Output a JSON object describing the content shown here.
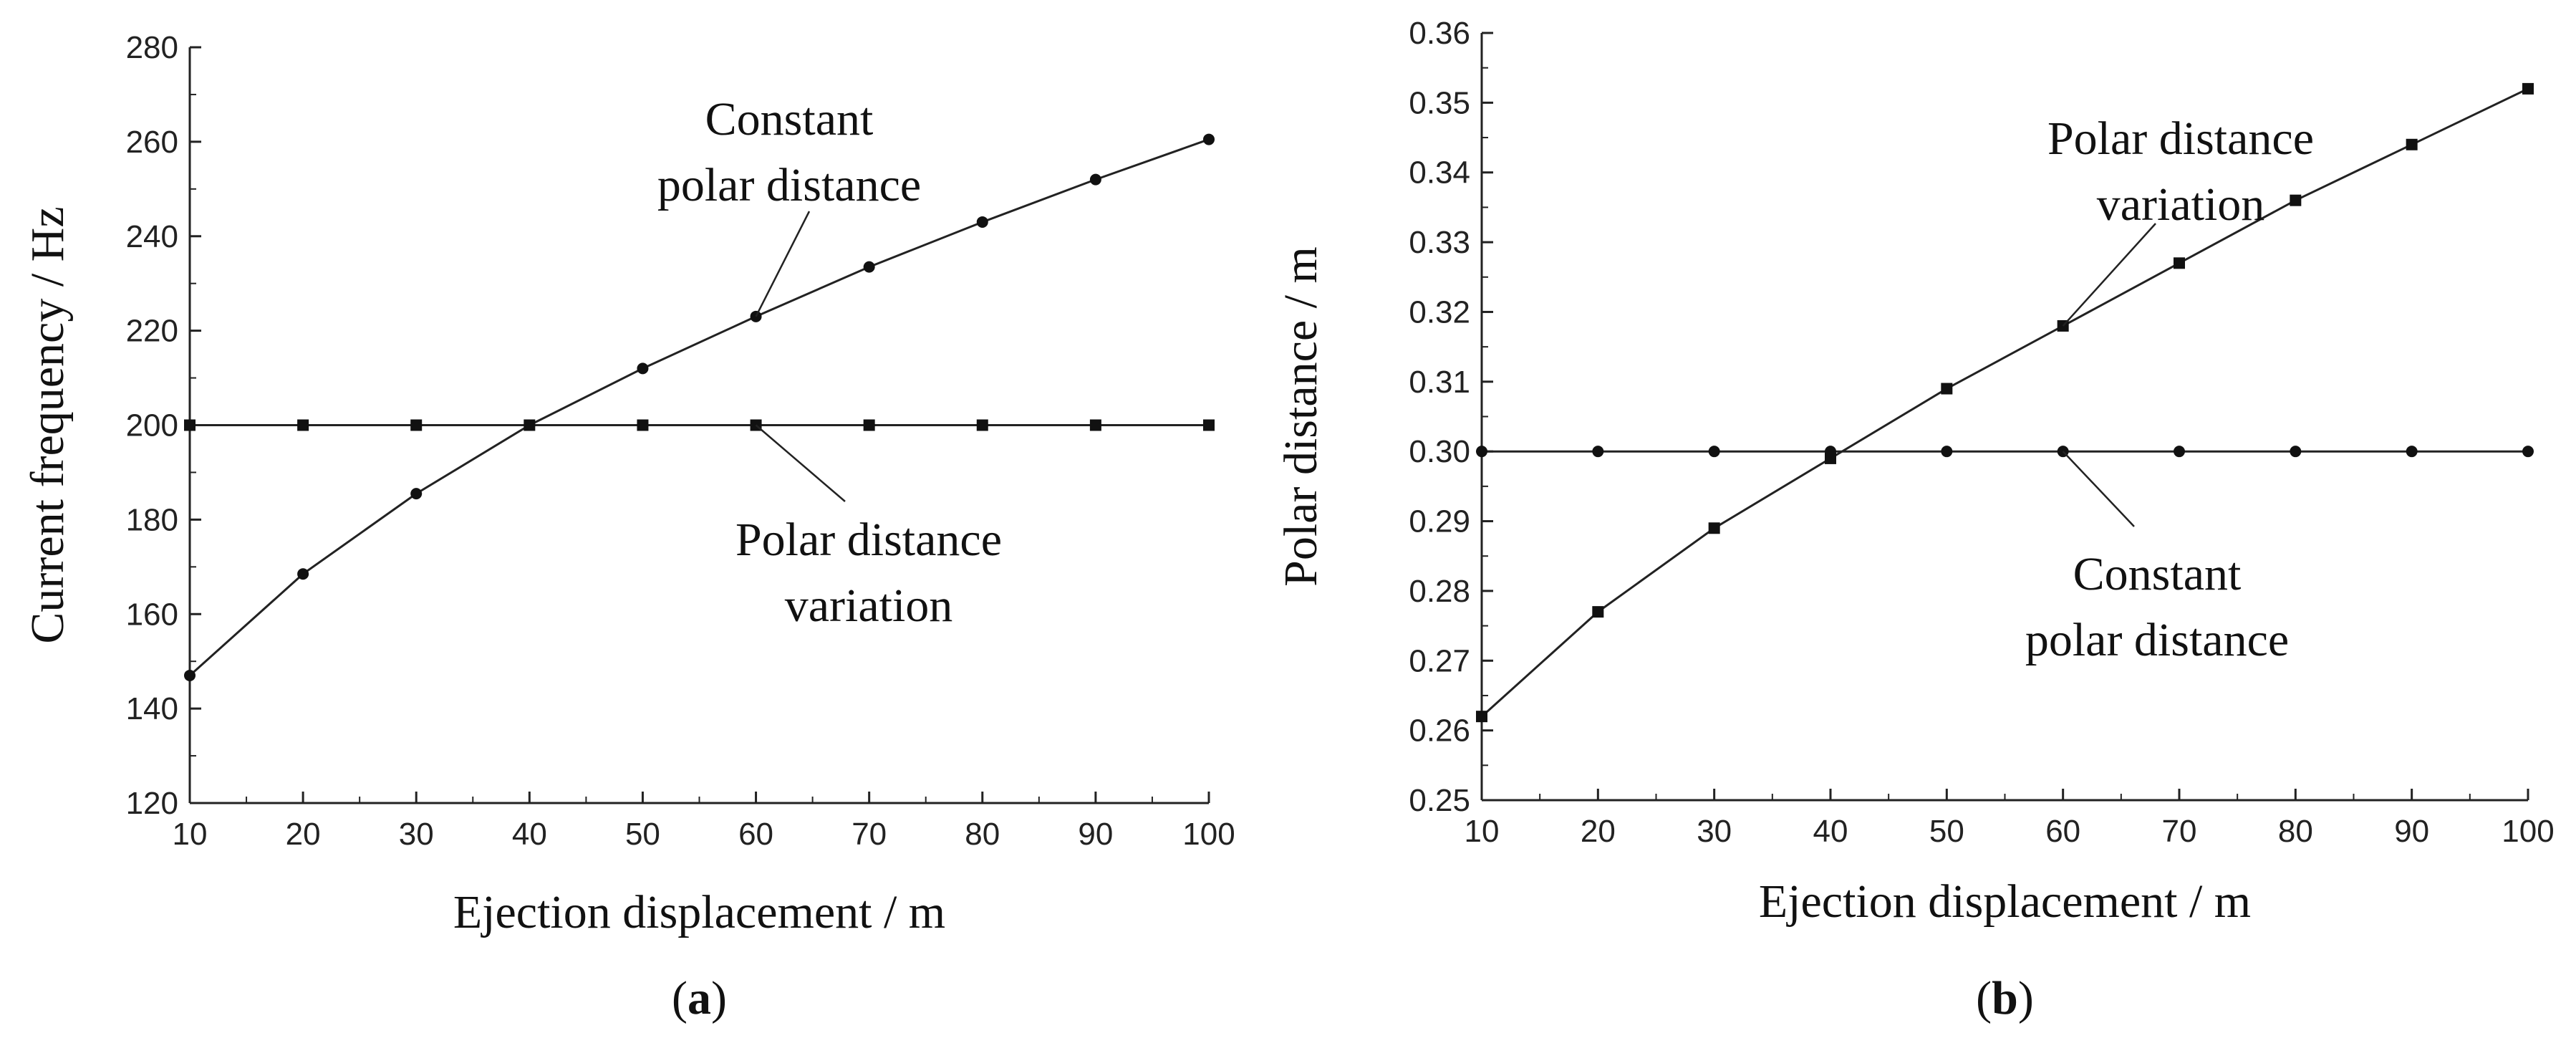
{
  "chart_data": [
    {
      "type": "line",
      "panel_label": "a",
      "xlabel": "Ejection displacement / m",
      "ylabel": "Current frequency / Hz",
      "xlim": [
        10,
        100
      ],
      "ylim": [
        120,
        280
      ],
      "xticks": [
        10,
        20,
        30,
        40,
        50,
        60,
        70,
        80,
        90,
        100
      ],
      "yticks": [
        120,
        140,
        160,
        180,
        200,
        220,
        240,
        260,
        280
      ],
      "series": [
        {
          "name": "Constant polar distance",
          "marker": "circle",
          "x": [
            10,
            20,
            30,
            40,
            50,
            60,
            70,
            80,
            90,
            100
          ],
          "y": [
            147,
            168.5,
            185.5,
            200,
            212,
            223,
            233.5,
            243,
            252,
            260.5
          ]
        },
        {
          "name": "Polar distance variation",
          "marker": "square",
          "x": [
            10,
            20,
            30,
            40,
            50,
            60,
            70,
            80,
            90,
            100
          ],
          "y": [
            200,
            200,
            200,
            200,
            200,
            200,
            200,
            200,
            200,
            200
          ]
        }
      ],
      "annotations": [
        {
          "lines": [
            "Constant",
            "polar distance"
          ],
          "series": 0,
          "point_x": 60
        },
        {
          "lines": [
            "Polar distance",
            "variation"
          ],
          "series": 1,
          "point_x": 60
        }
      ]
    },
    {
      "type": "line",
      "panel_label": "b",
      "xlabel": "Ejection displacement / m",
      "ylabel": "Polar distance / m",
      "xlim": [
        10,
        100
      ],
      "ylim": [
        0.25,
        0.36
      ],
      "xticks": [
        10,
        20,
        30,
        40,
        50,
        60,
        70,
        80,
        90,
        100
      ],
      "yticks": [
        0.25,
        0.26,
        0.27,
        0.28,
        0.29,
        0.3,
        0.31,
        0.32,
        0.33,
        0.34,
        0.35,
        0.36
      ],
      "ytick_labels": [
        "0.25",
        "0.26",
        "0.27",
        "0.28",
        "0.29",
        "0.30",
        "0.31",
        "0.32",
        "0.33",
        "0.34",
        "0.35",
        "0.36"
      ],
      "series": [
        {
          "name": "Polar distance variation",
          "marker": "square",
          "x": [
            10,
            20,
            30,
            40,
            50,
            60,
            70,
            80,
            90,
            100
          ],
          "y": [
            0.262,
            0.277,
            0.289,
            0.299,
            0.309,
            0.318,
            0.327,
            0.336,
            0.344,
            0.352
          ]
        },
        {
          "name": "Constant polar distance",
          "marker": "circle",
          "x": [
            10,
            20,
            30,
            40,
            50,
            60,
            70,
            80,
            90,
            100
          ],
          "y": [
            0.3,
            0.3,
            0.3,
            0.3,
            0.3,
            0.3,
            0.3,
            0.3,
            0.3,
            0.3
          ]
        }
      ],
      "annotations": [
        {
          "lines": [
            "Polar distance",
            "variation"
          ],
          "series": 0,
          "point_x": 60
        },
        {
          "lines": [
            "Constant",
            "polar distance"
          ],
          "series": 1,
          "point_x": 60
        }
      ]
    }
  ]
}
